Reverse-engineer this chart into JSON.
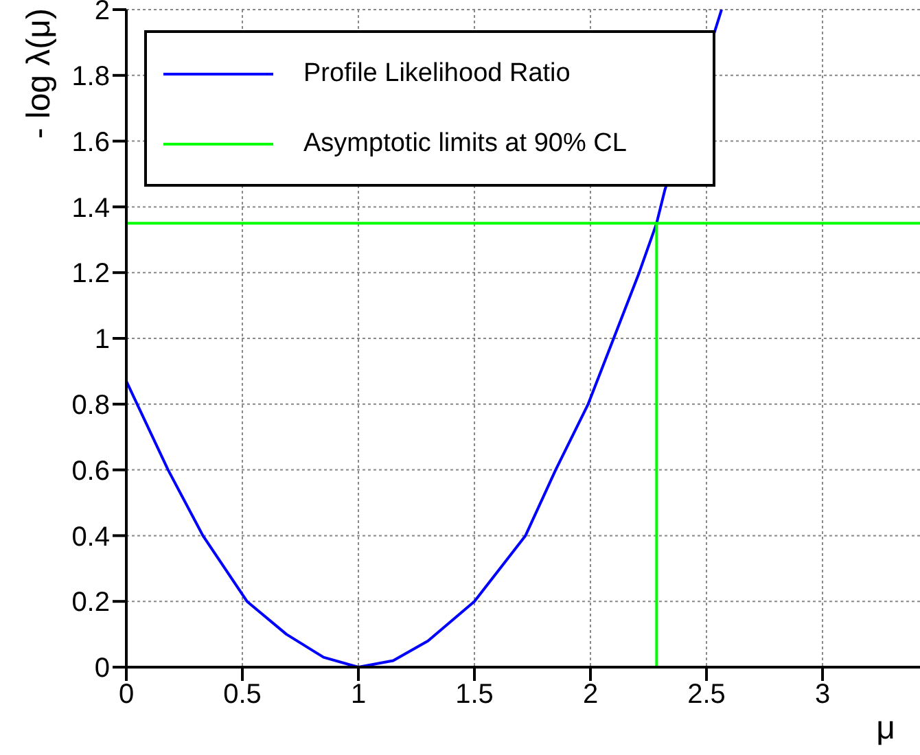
{
  "chart_data": {
    "type": "line",
    "xlabel": "μ",
    "ylabel": "- log λ(μ)",
    "xlim": [
      0,
      3.42
    ],
    "xticks": [
      0,
      0.5,
      1,
      1.5,
      2,
      2.5,
      3
    ],
    "ylim": [
      0,
      2
    ],
    "yticks": [
      0,
      0.2,
      0.4,
      0.6,
      0.8,
      1,
      1.2,
      1.4,
      1.6,
      1.8,
      2
    ],
    "grid": true,
    "legend": "top left",
    "marker": "none",
    "line_style": "solid",
    "series": [
      {
        "name": "Profile Likelihood Ratio",
        "color": "#0000ff",
        "x": [
          0,
          0.18,
          0.33,
          0.52,
          0.69,
          0.85,
          1,
          1.15,
          1.3,
          1.5,
          1.72,
          1.85,
          1.99,
          2.1,
          2.21,
          2.285,
          2.32,
          2.565
        ],
        "values": [
          0.87,
          0.6,
          0.4,
          0.2,
          0.1,
          0.03,
          0,
          0.02,
          0.08,
          0.2,
          0.4,
          0.6,
          0.8,
          1.0,
          1.2,
          1.35,
          1.45,
          2.0
        ]
      },
      {
        "name": "Asymptotic limits at 90% CL",
        "color": "#00ff00",
        "x": [
          0,
          3.42
        ],
        "values": [
          1.35,
          1.35
        ]
      },
      {
        "color": "#00ff00",
        "x": [
          2.285,
          2.285
        ],
        "values": [
          0,
          1.35
        ]
      }
    ]
  }
}
